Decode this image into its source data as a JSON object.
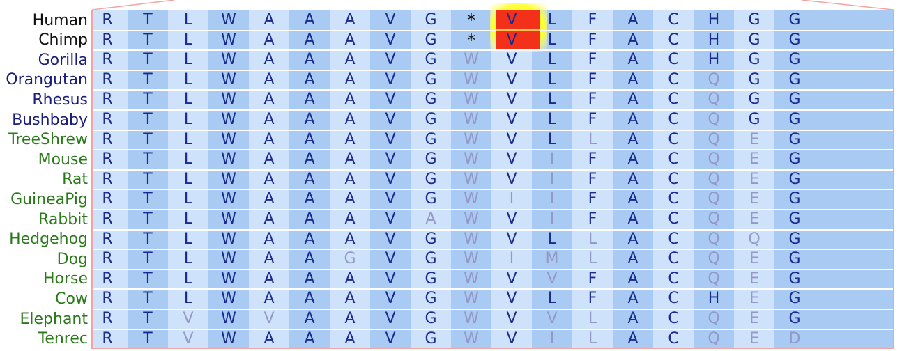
{
  "colors": {
    "band_light": "#cfe2fb",
    "band_dark": "#a9cbf3",
    "conserved": "#1a2a8f",
    "variant": "#9398c6",
    "primate_label": "#1a1d7a",
    "other_label": "#2a7a1a",
    "human_label": "#111111",
    "highlight": "#f3311a",
    "highlight_glow": "#ffff33",
    "frame": "#f4a3a3"
  },
  "alignment": {
    "highlight_column": 9,
    "rows": [
      {
        "species": "Human",
        "label_color": "human",
        "residues": [
          "R",
          "T",
          "L",
          "W",
          "A",
          "A",
          "A",
          "V",
          "G",
          "*",
          "V",
          "L",
          "F",
          "A",
          "C",
          "H",
          "G",
          "G"
        ],
        "variant": []
      },
      {
        "species": "Chimp",
        "label_color": "human",
        "residues": [
          "R",
          "T",
          "L",
          "W",
          "A",
          "A",
          "A",
          "V",
          "G",
          "*",
          "V",
          "L",
          "F",
          "A",
          "C",
          "H",
          "G",
          "G"
        ],
        "variant": []
      },
      {
        "species": "Gorilla",
        "label_color": "primate",
        "residues": [
          "R",
          "T",
          "L",
          "W",
          "A",
          "A",
          "A",
          "V",
          "G",
          "W",
          "V",
          "L",
          "F",
          "A",
          "C",
          "H",
          "G",
          "G"
        ],
        "variant": [
          9
        ]
      },
      {
        "species": "Orangutan",
        "label_color": "primate",
        "residues": [
          "R",
          "T",
          "L",
          "W",
          "A",
          "A",
          "A",
          "V",
          "G",
          "W",
          "V",
          "L",
          "F",
          "A",
          "C",
          "Q",
          "G",
          "G"
        ],
        "variant": [
          9,
          15
        ]
      },
      {
        "species": "Rhesus",
        "label_color": "primate",
        "residues": [
          "R",
          "T",
          "L",
          "W",
          "A",
          "A",
          "A",
          "V",
          "G",
          "W",
          "V",
          "L",
          "F",
          "A",
          "C",
          "Q",
          "G",
          "G"
        ],
        "variant": [
          9,
          15
        ]
      },
      {
        "species": "Bushbaby",
        "label_color": "primate",
        "residues": [
          "R",
          "T",
          "L",
          "W",
          "A",
          "A",
          "A",
          "V",
          "G",
          "W",
          "V",
          "L",
          "F",
          "A",
          "C",
          "Q",
          "G",
          "G"
        ],
        "variant": [
          9,
          15
        ]
      },
      {
        "species": "TreeShrew",
        "label_color": "other",
        "residues": [
          "R",
          "T",
          "L",
          "W",
          "A",
          "A",
          "A",
          "V",
          "G",
          "W",
          "V",
          "L",
          "L",
          "A",
          "C",
          "Q",
          "E",
          "G"
        ],
        "variant": [
          9,
          12,
          15,
          16
        ]
      },
      {
        "species": "Mouse",
        "label_color": "other",
        "residues": [
          "R",
          "T",
          "L",
          "W",
          "A",
          "A",
          "A",
          "V",
          "G",
          "W",
          "V",
          "I",
          "F",
          "A",
          "C",
          "Q",
          "E",
          "G"
        ],
        "variant": [
          9,
          11,
          15,
          16
        ]
      },
      {
        "species": "Rat",
        "label_color": "other",
        "residues": [
          "R",
          "T",
          "L",
          "W",
          "A",
          "A",
          "A",
          "V",
          "G",
          "W",
          "V",
          "I",
          "F",
          "A",
          "C",
          "Q",
          "E",
          "G"
        ],
        "variant": [
          9,
          11,
          15,
          16
        ]
      },
      {
        "species": "GuineaPig",
        "label_color": "other",
        "residues": [
          "R",
          "T",
          "L",
          "W",
          "A",
          "A",
          "A",
          "V",
          "G",
          "W",
          "I",
          "I",
          "F",
          "A",
          "C",
          "Q",
          "E",
          "G"
        ],
        "variant": [
          9,
          10,
          11,
          15,
          16
        ]
      },
      {
        "species": "Rabbit",
        "label_color": "other",
        "residues": [
          "R",
          "T",
          "L",
          "W",
          "A",
          "A",
          "A",
          "V",
          "A",
          "W",
          "V",
          "I",
          "F",
          "A",
          "C",
          "Q",
          "E",
          "G"
        ],
        "variant": [
          8,
          9,
          11,
          15,
          16
        ]
      },
      {
        "species": "Hedgehog",
        "label_color": "other",
        "residues": [
          "R",
          "T",
          "L",
          "W",
          "A",
          "A",
          "A",
          "V",
          "G",
          "W",
          "V",
          "L",
          "L",
          "A",
          "C",
          "Q",
          "Q",
          "G"
        ],
        "variant": [
          9,
          12,
          15,
          16
        ]
      },
      {
        "species": "Dog",
        "label_color": "other",
        "residues": [
          "R",
          "T",
          "L",
          "W",
          "A",
          "A",
          "G",
          "V",
          "G",
          "W",
          "I",
          "M",
          "L",
          "A",
          "C",
          "Q",
          "E",
          "G"
        ],
        "variant": [
          6,
          9,
          10,
          11,
          12,
          15,
          16
        ]
      },
      {
        "species": "Horse",
        "label_color": "other",
        "residues": [
          "R",
          "T",
          "L",
          "W",
          "A",
          "A",
          "A",
          "V",
          "G",
          "W",
          "V",
          "V",
          "F",
          "A",
          "C",
          "Q",
          "E",
          "G"
        ],
        "variant": [
          9,
          11,
          15,
          16
        ]
      },
      {
        "species": "Cow",
        "label_color": "other",
        "residues": [
          "R",
          "T",
          "L",
          "W",
          "A",
          "A",
          "A",
          "V",
          "G",
          "W",
          "V",
          "L",
          "F",
          "A",
          "C",
          "H",
          "E",
          "G"
        ],
        "variant": [
          9,
          16
        ]
      },
      {
        "species": "Elephant",
        "label_color": "other",
        "residues": [
          "R",
          "T",
          "V",
          "W",
          "V",
          "A",
          "A",
          "V",
          "G",
          "W",
          "V",
          "V",
          "L",
          "A",
          "C",
          "Q",
          "E",
          "G"
        ],
        "variant": [
          2,
          4,
          9,
          11,
          12,
          15,
          16
        ]
      },
      {
        "species": "Tenrec",
        "label_color": "other",
        "residues": [
          "R",
          "T",
          "V",
          "W",
          "A",
          "A",
          "A",
          "V",
          "G",
          "W",
          "V",
          "I",
          "L",
          "A",
          "C",
          "Q",
          "E",
          "D"
        ],
        "variant": [
          2,
          9,
          11,
          12,
          15,
          16,
          17
        ]
      }
    ]
  }
}
